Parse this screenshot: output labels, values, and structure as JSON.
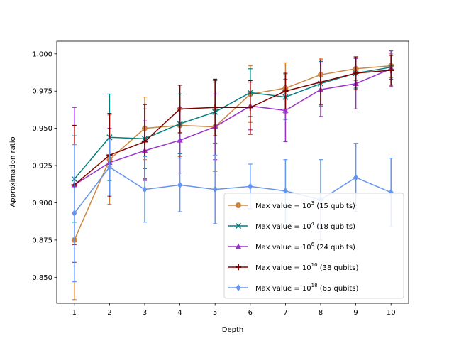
{
  "chart_data": {
    "type": "line",
    "xlabel": "Depth",
    "ylabel": "Approximation ratio",
    "x": [
      1,
      2,
      3,
      4,
      5,
      6,
      7,
      8,
      9,
      10
    ],
    "xlim": [
      0.5,
      10.5
    ],
    "ylim": [
      0.8325,
      1.0085
    ],
    "yticks": [
      0.85,
      0.875,
      0.9,
      0.925,
      0.95,
      0.975,
      1.0
    ],
    "ytick_labels": [
      "0.850",
      "0.875",
      "0.900",
      "0.925",
      "0.950",
      "0.975",
      "1.000"
    ],
    "xtick_labels": [
      "1",
      "2",
      "3",
      "4",
      "5",
      "6",
      "7",
      "8",
      "9",
      "10"
    ],
    "legend_position": "lower-right",
    "grid": false,
    "series": [
      {
        "name_prefix": "Max value = 10",
        "name_exp": "3",
        "name_suffix": " (15 qubits)",
        "color": "#cd853f",
        "marker": "circle",
        "values": [
          0.875,
          0.929,
          0.95,
          0.952,
          0.951,
          0.973,
          0.977,
          0.986,
          0.99,
          0.992
        ],
        "errors": [
          0.04,
          0.03,
          0.021,
          0.021,
          0.03,
          0.019,
          0.017,
          0.011,
          0.008,
          0.008
        ]
      },
      {
        "name_prefix": "Max value = 10",
        "name_exp": "4",
        "name_suffix": " (18 qubits)",
        "color": "#008080",
        "marker": "x",
        "values": [
          0.916,
          0.944,
          0.943,
          0.953,
          0.961,
          0.974,
          0.971,
          0.98,
          0.987,
          0.991
        ],
        "errors": [
          0.029,
          0.029,
          0.02,
          0.02,
          0.021,
          0.016,
          0.015,
          0.015,
          0.01,
          0.008
        ]
      },
      {
        "name_prefix": "Max value = 10",
        "name_exp": "6",
        "name_suffix": " (24 qubits)",
        "color": "#9932cc",
        "marker": "triangle",
        "values": [
          0.912,
          0.927,
          0.935,
          0.942,
          0.951,
          0.965,
          0.962,
          0.976,
          0.98,
          0.99
        ],
        "errors": [
          0.052,
          0.023,
          0.02,
          0.022,
          0.022,
          0.016,
          0.021,
          0.018,
          0.017,
          0.012
        ]
      },
      {
        "name_prefix": "Max value = 10",
        "name_exp": "10",
        "name_suffix": " (38 qubits)",
        "color": "#800000",
        "marker": "plus",
        "values": [
          0.912,
          0.932,
          0.941,
          0.963,
          0.964,
          0.964,
          0.975,
          0.981,
          0.987,
          0.989
        ],
        "errors": [
          0.04,
          0.028,
          0.025,
          0.016,
          0.019,
          0.018,
          0.012,
          0.015,
          0.011,
          0.01
        ]
      },
      {
        "name_prefix": "Max value = 10",
        "name_exp": "18",
        "name_suffix": " (65 qubits)",
        "color": "#6495ed",
        "marker": "diamond",
        "values": [
          0.893,
          0.924,
          0.909,
          0.912,
          0.909,
          0.911,
          0.908,
          0.902,
          0.917,
          0.907
        ],
        "errors": [
          0.046,
          0.019,
          0.022,
          0.018,
          0.023,
          0.015,
          0.021,
          0.027,
          0.023,
          0.023
        ]
      }
    ]
  }
}
